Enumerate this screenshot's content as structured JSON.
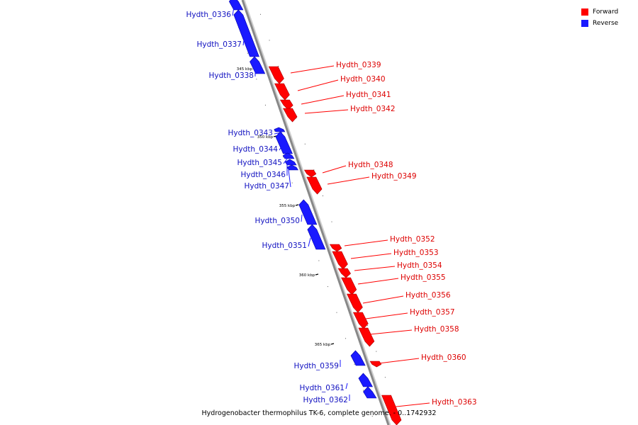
{
  "colors": {
    "forward": "#ff0000",
    "reverse": "#1a1aff",
    "axis": "#888888"
  },
  "legend": [
    {
      "label": "Forward",
      "color": "#ff0000"
    },
    {
      "label": "Reverse",
      "color": "#1a1aff"
    }
  ],
  "caption": "Hydrogenobacter thermophilus TK-6, complete genome. - 0..1742932",
  "scale_labels": [
    "345 kbp",
    "350 kbp",
    "355 kbp",
    "360 kbp",
    "365 kbp"
  ],
  "genes": [
    {
      "label": "Hydth_0336",
      "strand": "reverse"
    },
    {
      "label": "Hydth_0337",
      "strand": "reverse"
    },
    {
      "label": "Hydth_0338",
      "strand": "reverse"
    },
    {
      "label": "Hydth_0339",
      "strand": "forward"
    },
    {
      "label": "Hydth_0340",
      "strand": "forward"
    },
    {
      "label": "Hydth_0341",
      "strand": "forward"
    },
    {
      "label": "Hydth_0342",
      "strand": "forward"
    },
    {
      "label": "Hydth_0343",
      "strand": "reverse"
    },
    {
      "label": "Hydth_0344",
      "strand": "reverse"
    },
    {
      "label": "Hydth_0345",
      "strand": "reverse"
    },
    {
      "label": "Hydth_0346",
      "strand": "reverse"
    },
    {
      "label": "Hydth_0347",
      "strand": "reverse"
    },
    {
      "label": "Hydth_0348",
      "strand": "forward"
    },
    {
      "label": "Hydth_0349",
      "strand": "forward"
    },
    {
      "label": "Hydth_0350",
      "strand": "reverse"
    },
    {
      "label": "Hydth_0351",
      "strand": "reverse"
    },
    {
      "label": "Hydth_0352",
      "strand": "forward"
    },
    {
      "label": "Hydth_0353",
      "strand": "forward"
    },
    {
      "label": "Hydth_0354",
      "strand": "forward"
    },
    {
      "label": "Hydth_0355",
      "strand": "forward"
    },
    {
      "label": "Hydth_0356",
      "strand": "forward"
    },
    {
      "label": "Hydth_0357",
      "strand": "forward"
    },
    {
      "label": "Hydth_0358",
      "strand": "forward"
    },
    {
      "label": "Hydth_0359",
      "strand": "reverse"
    },
    {
      "label": "Hydth_0360",
      "strand": "forward"
    },
    {
      "label": "Hydth_0361",
      "strand": "reverse"
    },
    {
      "label": "Hydth_0362",
      "strand": "reverse"
    },
    {
      "label": "Hydth_0363",
      "strand": "forward"
    }
  ]
}
